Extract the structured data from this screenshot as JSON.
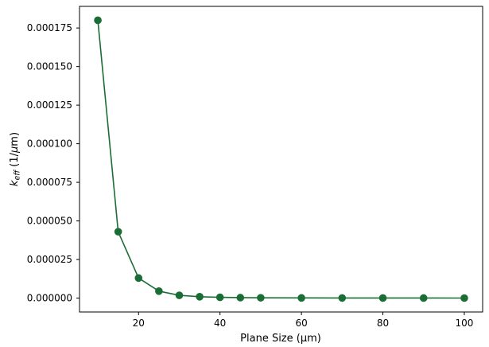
{
  "figure": {
    "background": "#ffffff"
  },
  "chart_data": {
    "type": "line",
    "title": "",
    "xlabel": "Plane Size (μm)",
    "ylabel": "k_eff (1/μm)",
    "ylabel_parts": {
      "var": "k",
      "sub": "eff",
      "unit_open": " (1/",
      "unit_mu": "μ",
      "unit_close": "m)"
    },
    "x": [
      10,
      15,
      20,
      25,
      30,
      35,
      40,
      45,
      50,
      60,
      70,
      80,
      90,
      100
    ],
    "y": [
      0.00018,
      4.3e-05,
      1.3e-05,
      4.5e-06,
      1.8e-06,
      9e-07,
      5e-07,
      3e-07,
      2e-07,
      1e-07,
      7e-08,
      5e-08,
      3e-08,
      2e-08
    ],
    "line_color": "#1a6e35",
    "marker_color": "#1a6e35",
    "marker": "o",
    "xlim": [
      5.5,
      104.5
    ],
    "ylim": [
      -9e-06,
      0.000189
    ],
    "xticks": [
      20,
      40,
      60,
      80,
      100
    ],
    "yticks": [
      0.0,
      2.5e-05,
      5e-05,
      7.5e-05,
      0.0001,
      0.000125,
      0.00015,
      0.000175
    ],
    "ytick_decimals": 6,
    "grid": false,
    "legend_position": "none"
  }
}
